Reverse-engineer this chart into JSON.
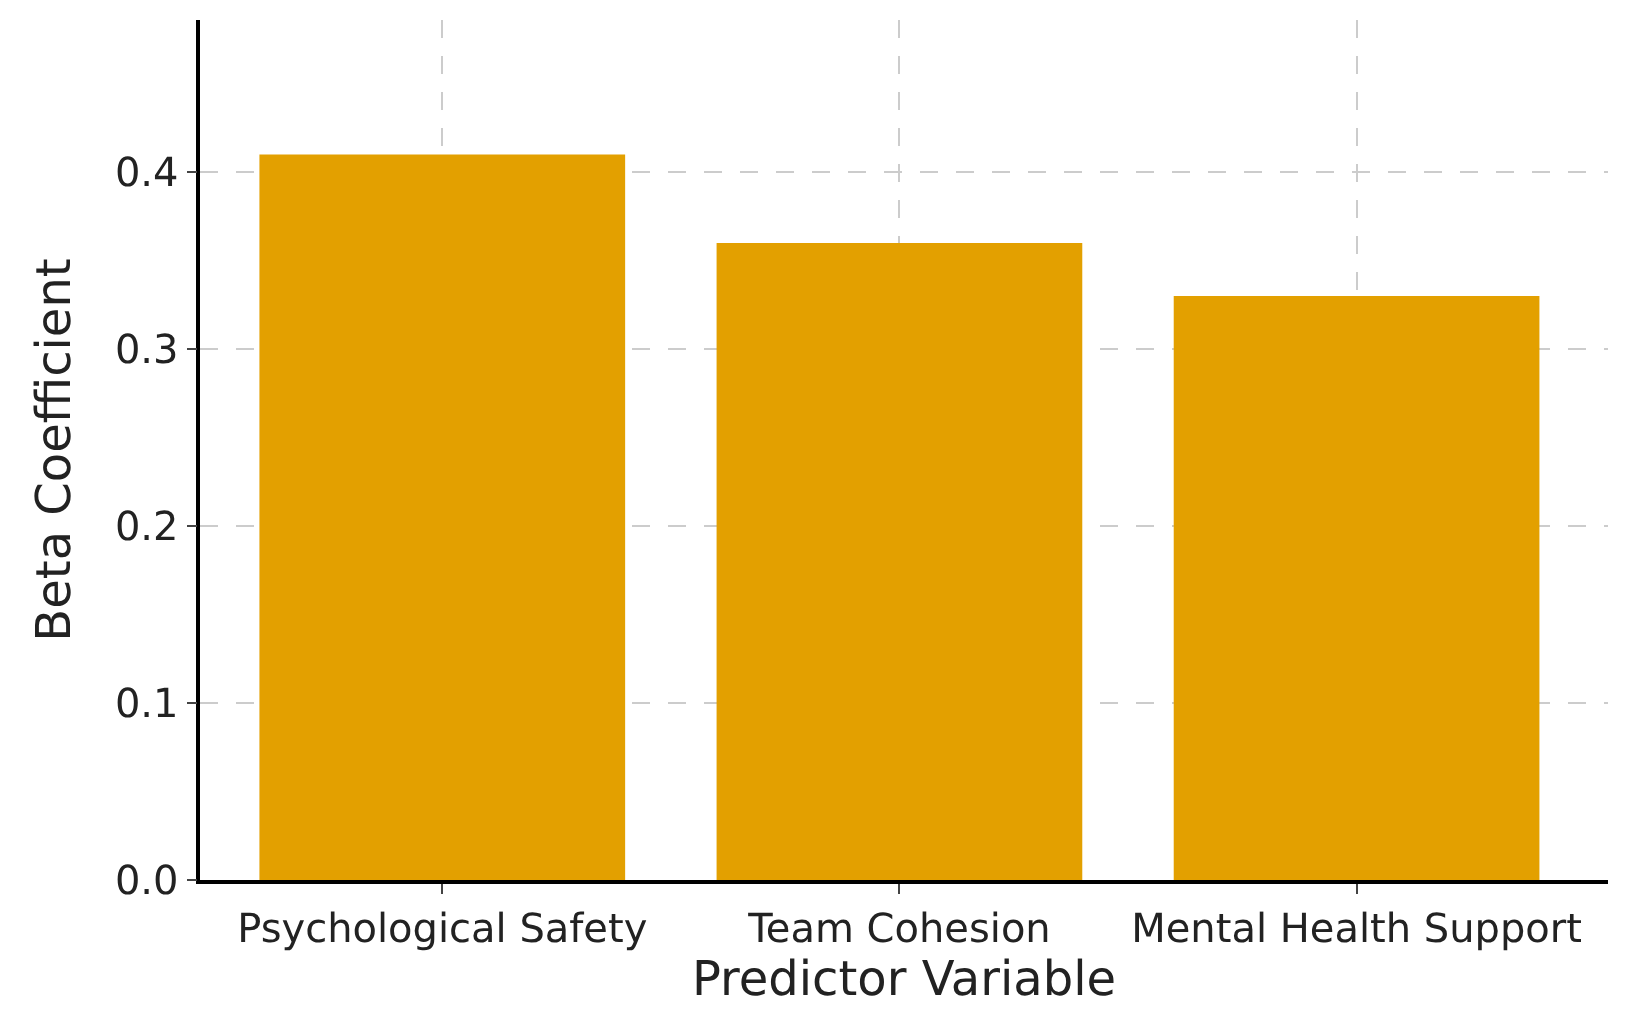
{
  "chart_data": {
    "type": "bar",
    "xlabel": "Predictor Variable",
    "ylabel": "Beta Coefficient",
    "categories": [
      "Psychological Safety",
      "Team Cohesion",
      "Mental Health Support"
    ],
    "values": [
      0.41,
      0.36,
      0.33
    ],
    "color": "#e3a000",
    "ylim": [
      0,
      0.486
    ],
    "yticks": [
      {
        "value": 0,
        "label": "0.0"
      },
      {
        "value": 0.1,
        "label": "0.1"
      },
      {
        "value": 0.2,
        "label": "0.2"
      },
      {
        "value": 0.3,
        "label": "0.3"
      },
      {
        "value": 0.4,
        "label": "0.4"
      }
    ],
    "grid": true
  }
}
